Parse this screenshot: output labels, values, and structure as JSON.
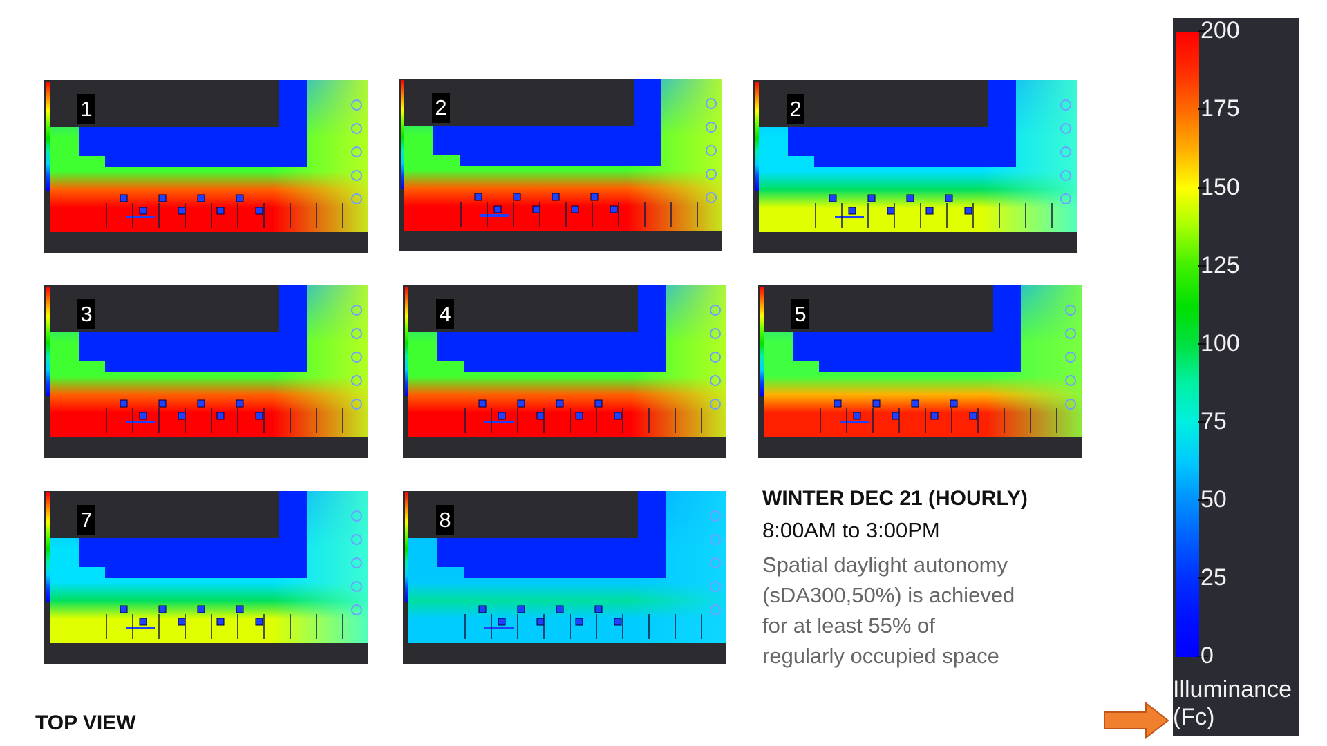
{
  "panels": [
    {
      "label": "1",
      "level": 3
    },
    {
      "label": "2",
      "level": 3
    },
    {
      "label": "2",
      "level": 1
    },
    {
      "label": "3",
      "level": 3
    },
    {
      "label": "4",
      "level": 2.5
    },
    {
      "label": "5",
      "level": 2.3
    },
    {
      "label": "7",
      "level": 1
    },
    {
      "label": "8",
      "level": 0
    }
  ],
  "caption": {
    "title": "WINTER DEC 21 (HOURLY)",
    "time": "8:00AM to 3:00PM",
    "body_lines": [
      "Spatial daylight autonomy",
      "(sDA300,50%) is achieved",
      "for at least 55% of",
      "regularly occupied space"
    ]
  },
  "footer": {
    "top_view": "TOP VIEW"
  },
  "legend": {
    "values": [
      "200",
      "175",
      "150",
      "125",
      "100",
      "75",
      "50",
      "25",
      "0"
    ],
    "title_line1": "Illuminance",
    "title_line2": "(Fc)"
  },
  "colors": {
    "arrow": "#f07f2e",
    "panel_bg": "#2b2b30",
    "legend_bg": "#2b2b33"
  }
}
